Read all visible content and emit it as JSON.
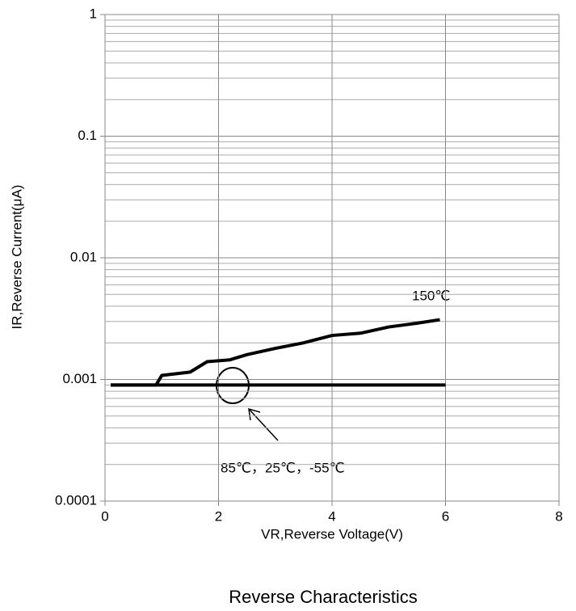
{
  "chart_data": {
    "type": "line",
    "title": "Reverse Characteristics",
    "xlabel": "VR,Reverse Voltage(V)",
    "ylabel": "IR,Reverse Current(μA)",
    "log_y": true,
    "grid": true,
    "xlim": [
      0,
      8
    ],
    "xticks": [
      0,
      2,
      4,
      6,
      8
    ],
    "ylim": [
      0.0001,
      1
    ],
    "yticks": [
      0.0001,
      0.001,
      0.01,
      0.1,
      1
    ],
    "minor_yticks": [
      0.0002,
      0.0003,
      0.0004,
      0.0005,
      0.0006,
      0.0007,
      0.0008,
      0.0009,
      0.002,
      0.003,
      0.004,
      0.005,
      0.006,
      0.007,
      0.008,
      0.009,
      0.02,
      0.03,
      0.04,
      0.05,
      0.06,
      0.07,
      0.08,
      0.09,
      0.2,
      0.3,
      0.4,
      0.5,
      0.6,
      0.7,
      0.8,
      0.9
    ],
    "series": [
      {
        "name": "150℃",
        "color": "#000000",
        "x": [
          0.1,
          0.9,
          1.0,
          1.5,
          1.8,
          2.2,
          2.5,
          3.0,
          3.5,
          4.0,
          4.5,
          5.0,
          5.5,
          5.9
        ],
        "values": [
          0.0009,
          0.0009,
          0.00108,
          0.00115,
          0.0014,
          0.00145,
          0.0016,
          0.0018,
          0.002,
          0.0023,
          0.0024,
          0.0027,
          0.0029,
          0.0031
        ]
      },
      {
        "name": "85℃，25℃，-55℃",
        "color": "#000000",
        "x": [
          0.1,
          6.0
        ],
        "values": [
          0.0009,
          0.0009
        ]
      }
    ]
  }
}
